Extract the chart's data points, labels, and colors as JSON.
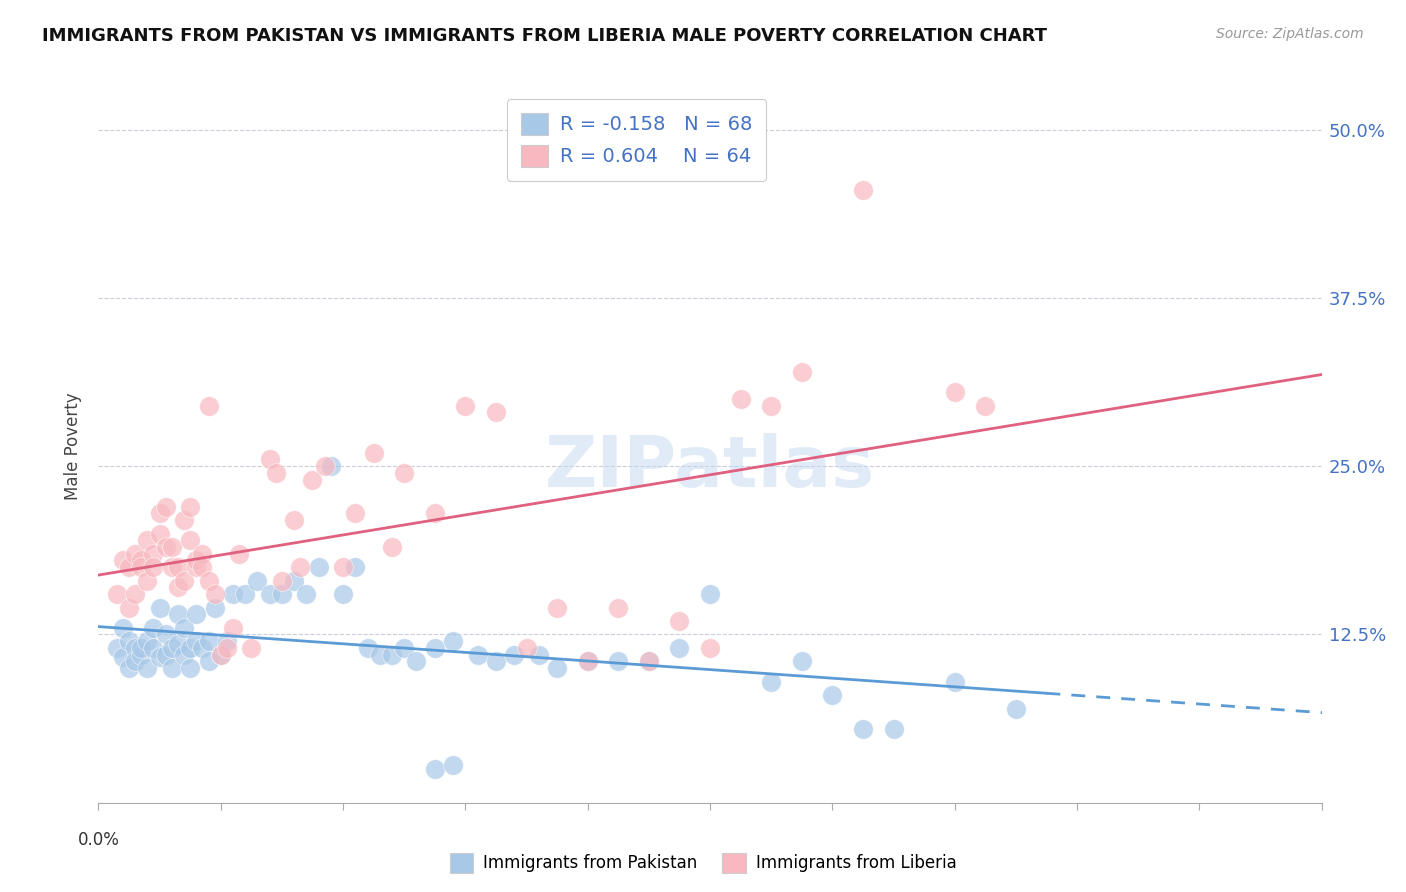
{
  "title": "IMMIGRANTS FROM PAKISTAN VS IMMIGRANTS FROM LIBERIA MALE POVERTY CORRELATION CHART",
  "source": "Source: ZipAtlas.com",
  "ylabel": "Male Poverty",
  "ytick_labels": [
    "12.5%",
    "25.0%",
    "37.5%",
    "50.0%"
  ],
  "ytick_values": [
    0.125,
    0.25,
    0.375,
    0.5
  ],
  "xlim": [
    0.0,
    0.2
  ],
  "ylim": [
    0.0,
    0.53
  ],
  "pakistan_color": "#a8c8e8",
  "liberia_color": "#f8b8c0",
  "pakistan_line_color": "#5b9bd5",
  "liberia_line_color": "#e06080",
  "text_blue": "#4472c4",
  "watermark": "ZIPatlas",
  "pakistan_scatter": [
    [
      0.003,
      0.115
    ],
    [
      0.004,
      0.108
    ],
    [
      0.004,
      0.13
    ],
    [
      0.005,
      0.1
    ],
    [
      0.005,
      0.12
    ],
    [
      0.006,
      0.115
    ],
    [
      0.006,
      0.105
    ],
    [
      0.007,
      0.11
    ],
    [
      0.007,
      0.115
    ],
    [
      0.008,
      0.1
    ],
    [
      0.008,
      0.12
    ],
    [
      0.009,
      0.115
    ],
    [
      0.009,
      0.13
    ],
    [
      0.01,
      0.108
    ],
    [
      0.01,
      0.145
    ],
    [
      0.011,
      0.11
    ],
    [
      0.011,
      0.125
    ],
    [
      0.012,
      0.115
    ],
    [
      0.012,
      0.1
    ],
    [
      0.013,
      0.14
    ],
    [
      0.013,
      0.118
    ],
    [
      0.014,
      0.13
    ],
    [
      0.014,
      0.11
    ],
    [
      0.015,
      0.115
    ],
    [
      0.015,
      0.1
    ],
    [
      0.016,
      0.12
    ],
    [
      0.016,
      0.14
    ],
    [
      0.017,
      0.115
    ],
    [
      0.018,
      0.105
    ],
    [
      0.018,
      0.12
    ],
    [
      0.019,
      0.145
    ],
    [
      0.02,
      0.11
    ],
    [
      0.021,
      0.12
    ],
    [
      0.022,
      0.155
    ],
    [
      0.024,
      0.155
    ],
    [
      0.026,
      0.165
    ],
    [
      0.028,
      0.155
    ],
    [
      0.03,
      0.155
    ],
    [
      0.032,
      0.165
    ],
    [
      0.034,
      0.155
    ],
    [
      0.036,
      0.175
    ],
    [
      0.038,
      0.25
    ],
    [
      0.04,
      0.155
    ],
    [
      0.042,
      0.175
    ],
    [
      0.044,
      0.115
    ],
    [
      0.046,
      0.11
    ],
    [
      0.048,
      0.11
    ],
    [
      0.05,
      0.115
    ],
    [
      0.052,
      0.105
    ],
    [
      0.055,
      0.115
    ],
    [
      0.058,
      0.12
    ],
    [
      0.062,
      0.11
    ],
    [
      0.065,
      0.105
    ],
    [
      0.068,
      0.11
    ],
    [
      0.072,
      0.11
    ],
    [
      0.075,
      0.1
    ],
    [
      0.08,
      0.105
    ],
    [
      0.085,
      0.105
    ],
    [
      0.09,
      0.105
    ],
    [
      0.095,
      0.115
    ],
    [
      0.1,
      0.155
    ],
    [
      0.11,
      0.09
    ],
    [
      0.115,
      0.105
    ],
    [
      0.12,
      0.08
    ],
    [
      0.125,
      0.055
    ],
    [
      0.13,
      0.055
    ],
    [
      0.14,
      0.09
    ],
    [
      0.15,
      0.07
    ],
    [
      0.055,
      0.025
    ],
    [
      0.058,
      0.028
    ]
  ],
  "liberia_scatter": [
    [
      0.003,
      0.155
    ],
    [
      0.004,
      0.18
    ],
    [
      0.005,
      0.175
    ],
    [
      0.005,
      0.145
    ],
    [
      0.006,
      0.155
    ],
    [
      0.006,
      0.185
    ],
    [
      0.007,
      0.18
    ],
    [
      0.007,
      0.175
    ],
    [
      0.008,
      0.165
    ],
    [
      0.008,
      0.195
    ],
    [
      0.009,
      0.185
    ],
    [
      0.009,
      0.175
    ],
    [
      0.01,
      0.2
    ],
    [
      0.01,
      0.215
    ],
    [
      0.011,
      0.19
    ],
    [
      0.011,
      0.22
    ],
    [
      0.012,
      0.175
    ],
    [
      0.012,
      0.19
    ],
    [
      0.013,
      0.16
    ],
    [
      0.013,
      0.175
    ],
    [
      0.014,
      0.21
    ],
    [
      0.014,
      0.165
    ],
    [
      0.015,
      0.195
    ],
    [
      0.015,
      0.22
    ],
    [
      0.016,
      0.175
    ],
    [
      0.016,
      0.18
    ],
    [
      0.017,
      0.185
    ],
    [
      0.017,
      0.175
    ],
    [
      0.018,
      0.295
    ],
    [
      0.018,
      0.165
    ],
    [
      0.019,
      0.155
    ],
    [
      0.02,
      0.11
    ],
    [
      0.021,
      0.115
    ],
    [
      0.022,
      0.13
    ],
    [
      0.023,
      0.185
    ],
    [
      0.025,
      0.115
    ],
    [
      0.028,
      0.255
    ],
    [
      0.029,
      0.245
    ],
    [
      0.03,
      0.165
    ],
    [
      0.032,
      0.21
    ],
    [
      0.033,
      0.175
    ],
    [
      0.035,
      0.24
    ],
    [
      0.037,
      0.25
    ],
    [
      0.04,
      0.175
    ],
    [
      0.042,
      0.215
    ],
    [
      0.045,
      0.26
    ],
    [
      0.048,
      0.19
    ],
    [
      0.05,
      0.245
    ],
    [
      0.055,
      0.215
    ],
    [
      0.06,
      0.295
    ],
    [
      0.065,
      0.29
    ],
    [
      0.07,
      0.115
    ],
    [
      0.075,
      0.145
    ],
    [
      0.08,
      0.105
    ],
    [
      0.085,
      0.145
    ],
    [
      0.09,
      0.105
    ],
    [
      0.095,
      0.135
    ],
    [
      0.1,
      0.115
    ],
    [
      0.105,
      0.3
    ],
    [
      0.11,
      0.295
    ],
    [
      0.115,
      0.32
    ],
    [
      0.125,
      0.455
    ],
    [
      0.14,
      0.305
    ],
    [
      0.145,
      0.295
    ]
  ]
}
